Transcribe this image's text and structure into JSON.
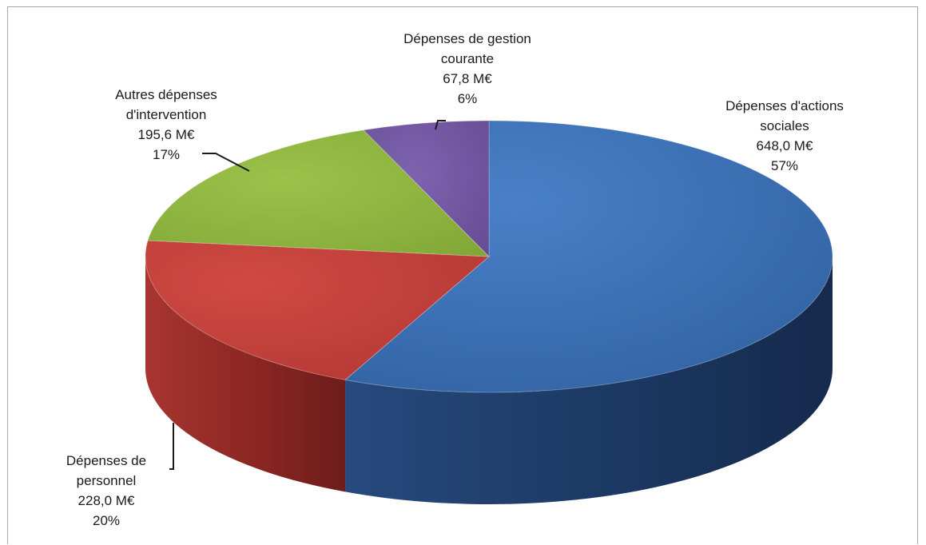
{
  "chart_data": {
    "type": "pie",
    "title": "",
    "slices": [
      {
        "label_lines": [
          "Dépenses d'actions",
          "sociales"
        ],
        "value_text": "648,0 M€",
        "pct_text": "57%",
        "value": 648.0,
        "percent": 57,
        "color": "#3a6fb5"
      },
      {
        "label_lines": [
          "Dépenses de",
          "personnel"
        ],
        "value_text": "228,0 M€",
        "pct_text": "20%",
        "value": 228.0,
        "percent": 20,
        "color": "#c0403a"
      },
      {
        "label_lines": [
          "Autres dépenses",
          "d'intervention"
        ],
        "value_text": "195,6 M€",
        "pct_text": "17%",
        "value": 195.6,
        "percent": 17,
        "color": "#8db33f"
      },
      {
        "label_lines": [
          "Dépenses de gestion",
          "courante"
        ],
        "value_text": "67,8 M€",
        "pct_text": "6%",
        "value": 67.8,
        "percent": 6,
        "color": "#7156a0"
      }
    ]
  }
}
